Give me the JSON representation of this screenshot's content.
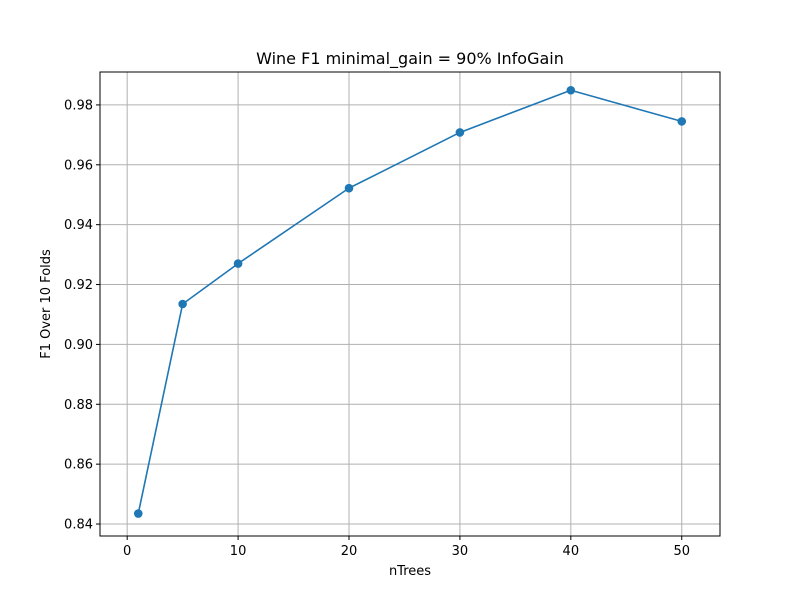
{
  "chart_data": {
    "type": "line",
    "title": "Wine F1 minimal_gain = 90% InfoGain",
    "xlabel": "nTrees",
    "ylabel": "F1 Over 10 Folds",
    "x": [
      1,
      5,
      10,
      20,
      30,
      40,
      50
    ],
    "series": [
      {
        "values": [
          0.8435,
          0.9135,
          0.927,
          0.9522,
          0.9708,
          0.9849,
          0.9745
        ],
        "color": "#1f77b4",
        "marker": "circle"
      }
    ],
    "xlim": [
      -2.45,
      53.45
    ],
    "ylim": [
      0.836,
      0.991
    ],
    "xticks": [
      0,
      10,
      20,
      30,
      40,
      50
    ],
    "yticks": [
      0.84,
      0.86,
      0.88,
      0.9,
      0.92,
      0.94,
      0.96,
      0.98
    ],
    "xtick_labels": [
      "0",
      "10",
      "20",
      "30",
      "40",
      "50"
    ],
    "ytick_labels": [
      "0.84",
      "0.86",
      "0.88",
      "0.90",
      "0.92",
      "0.94",
      "0.96",
      "0.98"
    ],
    "grid": true,
    "grid_color": "#b0b0b0",
    "axis_color": "#000000"
  }
}
